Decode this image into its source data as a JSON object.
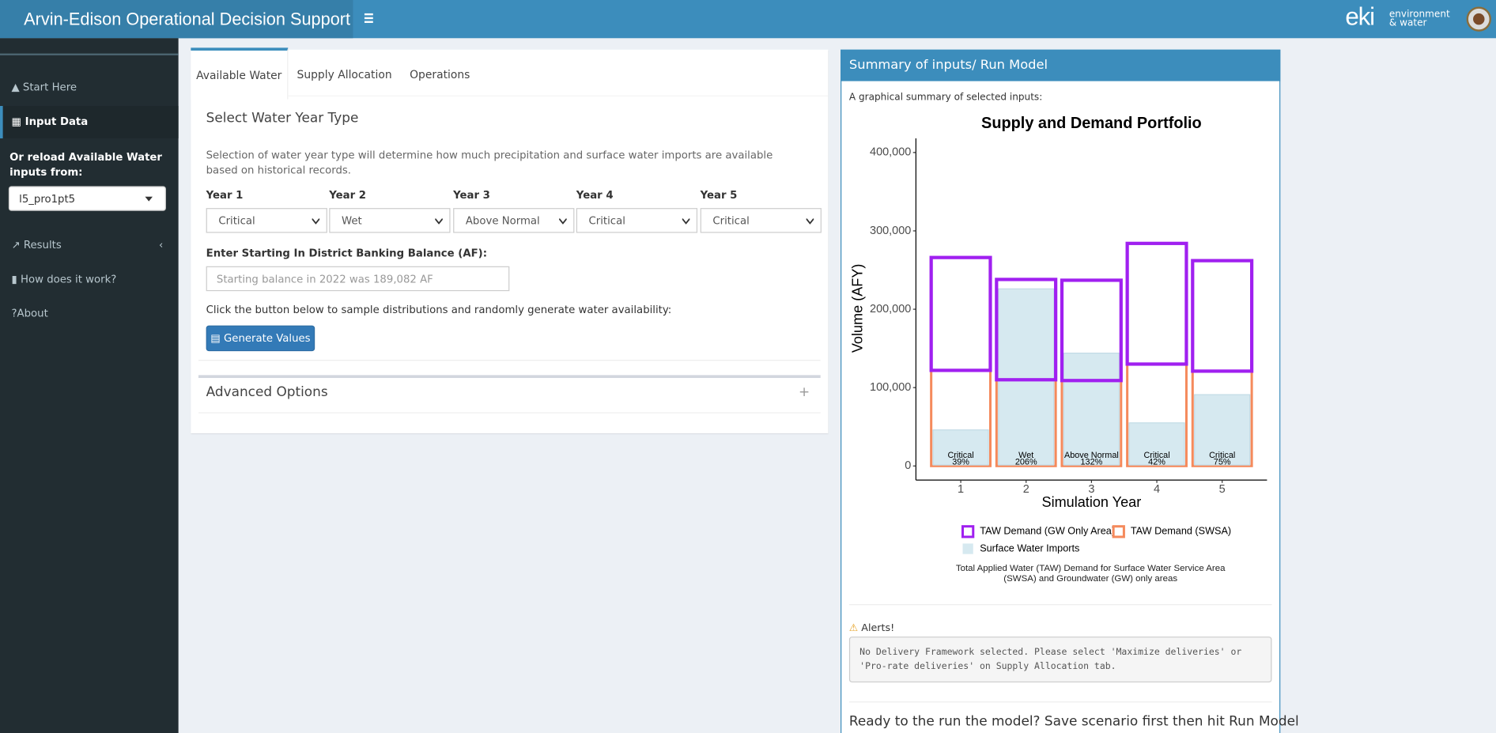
{
  "header": {
    "title": "Arvin-Edison Operational Decision Support",
    "logo": "eki",
    "logo_tagline": [
      "environment",
      "& water"
    ]
  },
  "sidebar": {
    "items": [
      "Start Here",
      "Input Data"
    ],
    "reload_label": "Or reload Available Water inputs from:",
    "reload_value": "l5_pro1pt5",
    "more_items": [
      "Results",
      "How does it work?",
      "About"
    ]
  },
  "tabs": [
    "Available Water",
    "Supply Allocation",
    "Operations"
  ],
  "main": {
    "heading": "Select Water Year Type",
    "description": "Selection of water year type will determine how much precipitation and surface water imports are available based on historical records.",
    "years": [
      {
        "label": "Year 1",
        "value": "Critical"
      },
      {
        "label": "Year 2",
        "value": "Wet"
      },
      {
        "label": "Year 3",
        "value": "Above Normal"
      },
      {
        "label": "Year 4",
        "value": "Critical"
      },
      {
        "label": "Year 5",
        "value": "Critical"
      }
    ],
    "balance_label": "Enter Starting In District Banking Balance (AF):",
    "balance_placeholder": "Starting balance in 2022 was 189,082 AF",
    "generate_text": "Click the button below to sample distributions and randomly generate water availability:",
    "generate_button": "Generate Values",
    "advanced": "Advanced Options",
    "advanced_toggle": "+"
  },
  "summary": {
    "title": "Summary of inputs/ Run Model",
    "intro": "A graphical summary of selected inputs:",
    "alerts_title": "Alerts!",
    "alert_text": "No Delivery Framework selected. Please select 'Maximize deliveries' or 'Pro-rate deliveries' on Supply Allocation tab.",
    "run_text": "Ready to the run the model? Save scenario first then hit Run Model"
  },
  "chart_data": {
    "type": "bar",
    "title": "Supply and Demand Portfolio",
    "x_label": "Simulation Year",
    "y_label": "Volume (AFY)",
    "categories": [
      "1",
      "2",
      "3",
      "4",
      "5"
    ],
    "series": [
      {
        "name": "TAW Demand (GW Only Area)",
        "color": "#a020f0",
        "outline": true,
        "values": [
          144000,
          128000,
          128000,
          154000,
          141000
        ]
      },
      {
        "name": "TAW Demand (SWSA)",
        "color": "#f58a5c",
        "outline": true,
        "values": [
          122000,
          110000,
          109000,
          130000,
          121000
        ]
      },
      {
        "name": "Surface Water Imports",
        "color": "#d6e9f0",
        "outline": false,
        "values": [
          46000,
          226000,
          144000,
          55000,
          91000
        ]
      }
    ],
    "bar_labels": [
      {
        "type": "Critical",
        "percent": "39%"
      },
      {
        "type": "Wet",
        "percent": "206%"
      },
      {
        "type": "Above Normal",
        "percent": "132%"
      },
      {
        "type": "Critical",
        "percent": "42%"
      },
      {
        "type": "Critical",
        "percent": "75%"
      }
    ],
    "ylim": [
      -18000,
      418000
    ],
    "yticks": [
      0,
      {
        "value": 100000,
        "label": "100,000"
      },
      {
        "value": 200000,
        "label": "200,000"
      },
      {
        "value": 300000,
        "label": "300,000"
      },
      {
        "value": 400000,
        "label": "400,000"
      }
    ],
    "grid": false,
    "caption": "Total Applied Water (TAW) Demand for Surface Water Service Area (SWSA) and Groundwater (GW) only areas"
  }
}
